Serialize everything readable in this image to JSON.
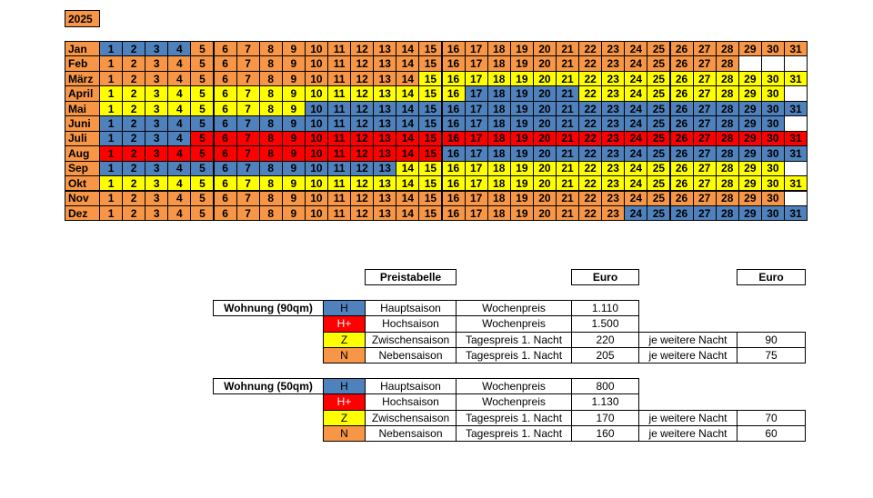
{
  "year": "2025",
  "season_colors": {
    "H": "#4f81bd",
    "H+": "#ff0000",
    "Z": "#ffff00",
    "N": "#f79646"
  },
  "calendar": {
    "months": [
      {
        "name": "Jan",
        "days": [
          1,
          2,
          3,
          4,
          5,
          6,
          7,
          8,
          9,
          10,
          11,
          12,
          13,
          14,
          15,
          16,
          17,
          18,
          19,
          20,
          21,
          22,
          23,
          24,
          25,
          26,
          27,
          28,
          29,
          30,
          31
        ],
        "seasons": [
          "H",
          "H",
          "H",
          "H",
          "N",
          "N",
          "N",
          "N",
          "N",
          "N",
          "N",
          "N",
          "N",
          "N",
          "N",
          "N",
          "N",
          "N",
          "N",
          "N",
          "N",
          "N",
          "N",
          "N",
          "N",
          "N",
          "N",
          "N",
          "N",
          "N",
          "N"
        ]
      },
      {
        "name": "Feb",
        "days": [
          1,
          2,
          3,
          4,
          5,
          6,
          7,
          8,
          9,
          10,
          11,
          12,
          13,
          14,
          15,
          16,
          17,
          18,
          19,
          20,
          21,
          22,
          23,
          24,
          25,
          26,
          27,
          28,
          null,
          null,
          null
        ],
        "seasons": [
          "N",
          "N",
          "N",
          "N",
          "N",
          "N",
          "N",
          "N",
          "N",
          "N",
          "N",
          "N",
          "N",
          "N",
          "N",
          "N",
          "N",
          "N",
          "N",
          "N",
          "N",
          "N",
          "N",
          "N",
          "N",
          "N",
          "N",
          "N",
          null,
          null,
          null
        ]
      },
      {
        "name": "März",
        "days": [
          1,
          2,
          3,
          4,
          5,
          6,
          7,
          8,
          9,
          10,
          11,
          12,
          13,
          14,
          15,
          16,
          17,
          18,
          19,
          20,
          21,
          22,
          23,
          24,
          25,
          26,
          27,
          28,
          29,
          30,
          31
        ],
        "seasons": [
          "N",
          "N",
          "N",
          "N",
          "N",
          "N",
          "N",
          "N",
          "N",
          "N",
          "N",
          "N",
          "N",
          "N",
          "Z",
          "Z",
          "Z",
          "Z",
          "Z",
          "Z",
          "Z",
          "Z",
          "Z",
          "Z",
          "Z",
          "Z",
          "Z",
          "Z",
          "Z",
          "Z",
          "Z"
        ]
      },
      {
        "name": "April",
        "days": [
          1,
          2,
          3,
          4,
          5,
          6,
          7,
          8,
          9,
          10,
          11,
          12,
          13,
          14,
          15,
          16,
          17,
          18,
          19,
          20,
          21,
          22,
          23,
          24,
          25,
          26,
          27,
          28,
          29,
          30,
          null
        ],
        "seasons": [
          "Z",
          "Z",
          "Z",
          "Z",
          "Z",
          "Z",
          "Z",
          "Z",
          "Z",
          "Z",
          "Z",
          "Z",
          "Z",
          "Z",
          "Z",
          "Z",
          "H",
          "H",
          "H",
          "H",
          "H",
          "Z",
          "Z",
          "Z",
          "Z",
          "Z",
          "Z",
          "Z",
          "Z",
          "Z",
          null
        ]
      },
      {
        "name": "Mai",
        "days": [
          1,
          2,
          3,
          4,
          5,
          6,
          7,
          8,
          9,
          10,
          11,
          12,
          13,
          14,
          15,
          16,
          17,
          18,
          19,
          20,
          21,
          22,
          23,
          24,
          25,
          26,
          27,
          28,
          29,
          30,
          31
        ],
        "seasons": [
          "Z",
          "Z",
          "Z",
          "Z",
          "Z",
          "Z",
          "Z",
          "Z",
          "Z",
          "H",
          "H",
          "H",
          "H",
          "H",
          "H",
          "H",
          "H",
          "H",
          "H",
          "H",
          "H",
          "H",
          "H",
          "H",
          "H",
          "H",
          "H",
          "H",
          "H",
          "H",
          "H"
        ]
      },
      {
        "name": "Juni",
        "days": [
          1,
          2,
          3,
          4,
          5,
          6,
          7,
          8,
          9,
          10,
          11,
          12,
          13,
          14,
          15,
          16,
          17,
          18,
          19,
          20,
          21,
          22,
          23,
          24,
          25,
          26,
          27,
          28,
          29,
          30,
          null
        ],
        "seasons": [
          "H",
          "H",
          "H",
          "H",
          "H",
          "H",
          "H",
          "H",
          "H",
          "H",
          "H",
          "H",
          "H",
          "H",
          "H",
          "H",
          "H",
          "H",
          "H",
          "H",
          "H",
          "H",
          "H",
          "H",
          "H",
          "H",
          "H",
          "H",
          "H",
          "H",
          null
        ]
      },
      {
        "name": "Juli",
        "days": [
          1,
          2,
          3,
          4,
          5,
          6,
          7,
          8,
          9,
          10,
          11,
          12,
          13,
          14,
          15,
          16,
          17,
          18,
          19,
          20,
          21,
          22,
          23,
          24,
          25,
          26,
          27,
          28,
          29,
          30,
          31
        ],
        "seasons": [
          "H",
          "H",
          "H",
          "H",
          "H+",
          "H+",
          "H+",
          "H+",
          "H+",
          "H+",
          "H+",
          "H+",
          "H+",
          "H+",
          "H+",
          "H+",
          "H+",
          "H+",
          "H+",
          "H+",
          "H+",
          "H+",
          "H+",
          "H+",
          "H+",
          "H+",
          "H+",
          "H+",
          "H+",
          "H+",
          "H+"
        ]
      },
      {
        "name": "Aug",
        "days": [
          1,
          2,
          3,
          4,
          5,
          6,
          7,
          8,
          9,
          10,
          11,
          12,
          13,
          14,
          15,
          16,
          17,
          18,
          19,
          20,
          21,
          22,
          23,
          24,
          25,
          26,
          27,
          28,
          29,
          30,
          31
        ],
        "seasons": [
          "H+",
          "H+",
          "H+",
          "H+",
          "H+",
          "H+",
          "H+",
          "H+",
          "H+",
          "H+",
          "H+",
          "H+",
          "H+",
          "H+",
          "H+",
          "H",
          "H",
          "H",
          "H",
          "H",
          "H",
          "H",
          "H",
          "H",
          "H",
          "H",
          "H",
          "H",
          "H",
          "H",
          "H"
        ]
      },
      {
        "name": "Sep",
        "days": [
          1,
          2,
          3,
          4,
          5,
          6,
          7,
          8,
          9,
          10,
          11,
          12,
          13,
          14,
          15,
          16,
          17,
          18,
          19,
          20,
          21,
          22,
          23,
          24,
          25,
          26,
          27,
          28,
          29,
          30,
          null
        ],
        "seasons": [
          "H",
          "H",
          "H",
          "H",
          "H",
          "H",
          "H",
          "H",
          "H",
          "H",
          "H",
          "H",
          "H",
          "Z",
          "Z",
          "Z",
          "Z",
          "Z",
          "Z",
          "Z",
          "Z",
          "Z",
          "Z",
          "Z",
          "Z",
          "Z",
          "Z",
          "Z",
          "Z",
          "Z",
          null
        ]
      },
      {
        "name": "Okt",
        "days": [
          1,
          2,
          3,
          4,
          5,
          6,
          7,
          8,
          9,
          10,
          11,
          12,
          13,
          14,
          15,
          16,
          17,
          18,
          19,
          20,
          21,
          22,
          23,
          24,
          25,
          26,
          27,
          28,
          29,
          30,
          31
        ],
        "seasons": [
          "Z",
          "Z",
          "Z",
          "Z",
          "Z",
          "Z",
          "Z",
          "Z",
          "Z",
          "Z",
          "Z",
          "Z",
          "Z",
          "Z",
          "Z",
          "Z",
          "Z",
          "Z",
          "Z",
          "Z",
          "Z",
          "Z",
          "Z",
          "Z",
          "Z",
          "Z",
          "Z",
          "Z",
          "Z",
          "Z",
          "Z"
        ]
      },
      {
        "name": "Nov",
        "days": [
          1,
          2,
          3,
          4,
          5,
          6,
          7,
          8,
          9,
          10,
          11,
          12,
          13,
          14,
          15,
          16,
          17,
          18,
          19,
          20,
          21,
          22,
          23,
          24,
          25,
          26,
          27,
          28,
          29,
          30,
          null
        ],
        "seasons": [
          "N",
          "N",
          "N",
          "N",
          "N",
          "N",
          "N",
          "N",
          "N",
          "N",
          "N",
          "N",
          "N",
          "N",
          "N",
          "N",
          "N",
          "N",
          "N",
          "N",
          "N",
          "N",
          "N",
          "N",
          "N",
          "N",
          "N",
          "N",
          "N",
          "N",
          null
        ]
      },
      {
        "name": "Dez",
        "days": [
          1,
          2,
          3,
          4,
          5,
          6,
          7,
          8,
          9,
          10,
          11,
          12,
          13,
          14,
          15,
          16,
          17,
          18,
          19,
          20,
          21,
          22,
          23,
          24,
          25,
          26,
          27,
          28,
          29,
          30,
          31
        ],
        "seasons": [
          "N",
          "N",
          "N",
          "N",
          "N",
          "N",
          "N",
          "N",
          "N",
          "N",
          "N",
          "N",
          "N",
          "N",
          "N",
          "N",
          "N",
          "N",
          "N",
          "N",
          "N",
          "N",
          "N",
          "H",
          "H",
          "H",
          "H",
          "H",
          "H",
          "H",
          "H"
        ]
      }
    ]
  },
  "price_header": {
    "title": "Preistabelle",
    "currency_1": "Euro",
    "currency_2": "Euro"
  },
  "apartments": [
    {
      "name": "Wohnung (90qm)",
      "rows": [
        {
          "code": "H",
          "season": "Hauptsaison",
          "rate": "Wochenpreis",
          "price": "1.110"
        },
        {
          "code": "H+",
          "season": "Hochsaison",
          "rate": "Wochenpreis",
          "price": "1.500"
        },
        {
          "code": "Z",
          "season": "Zwischensaison",
          "rate": "Tagespreis 1. Nacht",
          "price": "220",
          "extra_label": "je weitere Nacht",
          "extra_price": "90"
        },
        {
          "code": "N",
          "season": "Nebensaison",
          "rate": "Tagespreis 1. Nacht",
          "price": "205",
          "extra_label": "je weitere Nacht",
          "extra_price": "75"
        }
      ]
    },
    {
      "name": "Wohnung (50qm)",
      "rows": [
        {
          "code": "H",
          "season": "Hauptsaison",
          "rate": "Wochenpreis",
          "price": "800"
        },
        {
          "code": "H+",
          "season": "Hochsaison",
          "rate": "Wochenpreis",
          "price": "1.130"
        },
        {
          "code": "Z",
          "season": "Zwischensaison",
          "rate": "Tagespreis 1. Nacht",
          "price": "170",
          "extra_label": "je weitere Nacht",
          "extra_price": "70"
        },
        {
          "code": "N",
          "season": "Nebensaison",
          "rate": "Tagespreis 1. Nacht",
          "price": "160",
          "extra_label": "je weitere Nacht",
          "extra_price": "60"
        }
      ]
    }
  ]
}
